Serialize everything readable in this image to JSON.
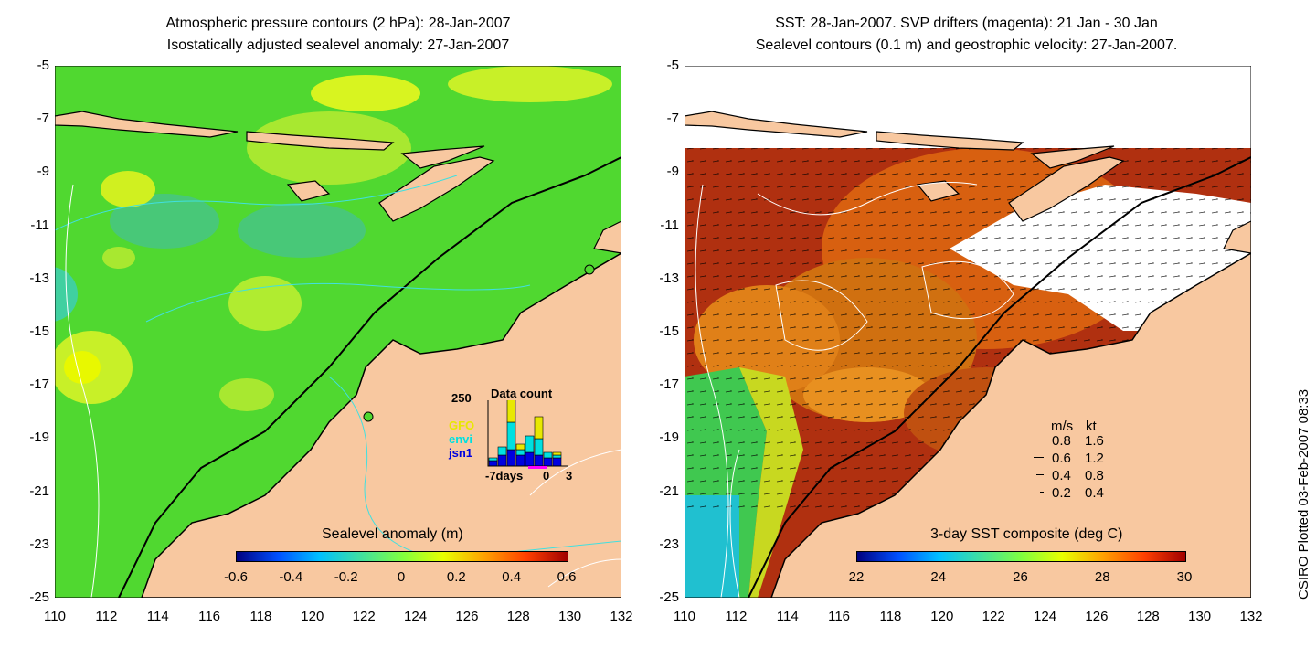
{
  "left_panel": {
    "title_line1": "Atmospheric pressure contours (2 hPa): 28-Jan-2007",
    "title_line2": "Isostatically adjusted sealevel anomaly: 27-Jan-2007",
    "colorbar_label": "Sealevel anomaly (m)",
    "colorbar_ticks": [
      "-0.6",
      "-0.4",
      "-0.2",
      "0",
      "0.2",
      "0.4",
      "0.6"
    ],
    "colorbar_colors": [
      "#00007f",
      "#0050ff",
      "#00c0ff",
      "#40e0a0",
      "#80ff40",
      "#e8ff00",
      "#ffa000",
      "#ff4000",
      "#a00000"
    ],
    "inset": {
      "title": "Data count",
      "y_label": "250",
      "legend": [
        {
          "name": "GFO",
          "color": "#e8e800"
        },
        {
          "name": "envi",
          "color": "#00e0e0"
        },
        {
          "name": "jsn1",
          "color": "#0000e0"
        }
      ],
      "x_labels": [
        "-7days",
        "0",
        "3"
      ],
      "bars": [
        {
          "gfo": 0,
          "envi": 10,
          "jsn1": 20
        },
        {
          "gfo": 0,
          "envi": 30,
          "jsn1": 40
        },
        {
          "gfo": 90,
          "envi": 100,
          "jsn1": 60
        },
        {
          "gfo": 20,
          "envi": 20,
          "jsn1": 40
        },
        {
          "gfo": 0,
          "envi": 60,
          "jsn1": 50
        },
        {
          "gfo": 80,
          "envi": 60,
          "jsn1": 40
        },
        {
          "gfo": 0,
          "envi": 20,
          "jsn1": 30
        },
        {
          "gfo": 10,
          "envi": 10,
          "jsn1": 30
        }
      ]
    }
  },
  "right_panel": {
    "title_line1": "SST: 28-Jan-2007. SVP drifters (magenta): 21 Jan - 30 Jan",
    "title_line2": "Sealevel contours (0.1 m) and geostrophic velocity: 27-Jan-2007.",
    "colorbar_label": "3-day SST composite (deg C)",
    "colorbar_ticks": [
      "22",
      "24",
      "26",
      "28",
      "30"
    ],
    "colorbar_colors": [
      "#00007f",
      "#0050ff",
      "#00c0ff",
      "#40e0a0",
      "#80ff40",
      "#e8ff00",
      "#ffa000",
      "#ff4000",
      "#a00000"
    ],
    "velocity_legend": {
      "header_ms": "m/s",
      "header_kt": "kt",
      "rows": [
        {
          "ms": "0.8",
          "kt": "1.6"
        },
        {
          "ms": "0.6",
          "kt": "1.2"
        },
        {
          "ms": "0.4",
          "kt": "0.8"
        },
        {
          "ms": "0.2",
          "kt": "0.4"
        }
      ]
    }
  },
  "axes": {
    "lat_ticks": [
      "-5",
      "-7",
      "-9",
      "-11",
      "-13",
      "-15",
      "-17",
      "-19",
      "-21",
      "-23",
      "-25"
    ],
    "lon_ticks": [
      "110",
      "112",
      "114",
      "116",
      "118",
      "120",
      "122",
      "124",
      "126",
      "128",
      "130",
      "132"
    ],
    "lat_range": [
      -25,
      -5
    ],
    "lon_range": [
      110,
      132
    ]
  },
  "credit": "CSIRO Plotted 03-Feb-2007 08:33",
  "colors": {
    "land": "#f8c8a0",
    "sea_left": "#50d830",
    "sea_right": "#c04010",
    "coast": "#000000"
  }
}
